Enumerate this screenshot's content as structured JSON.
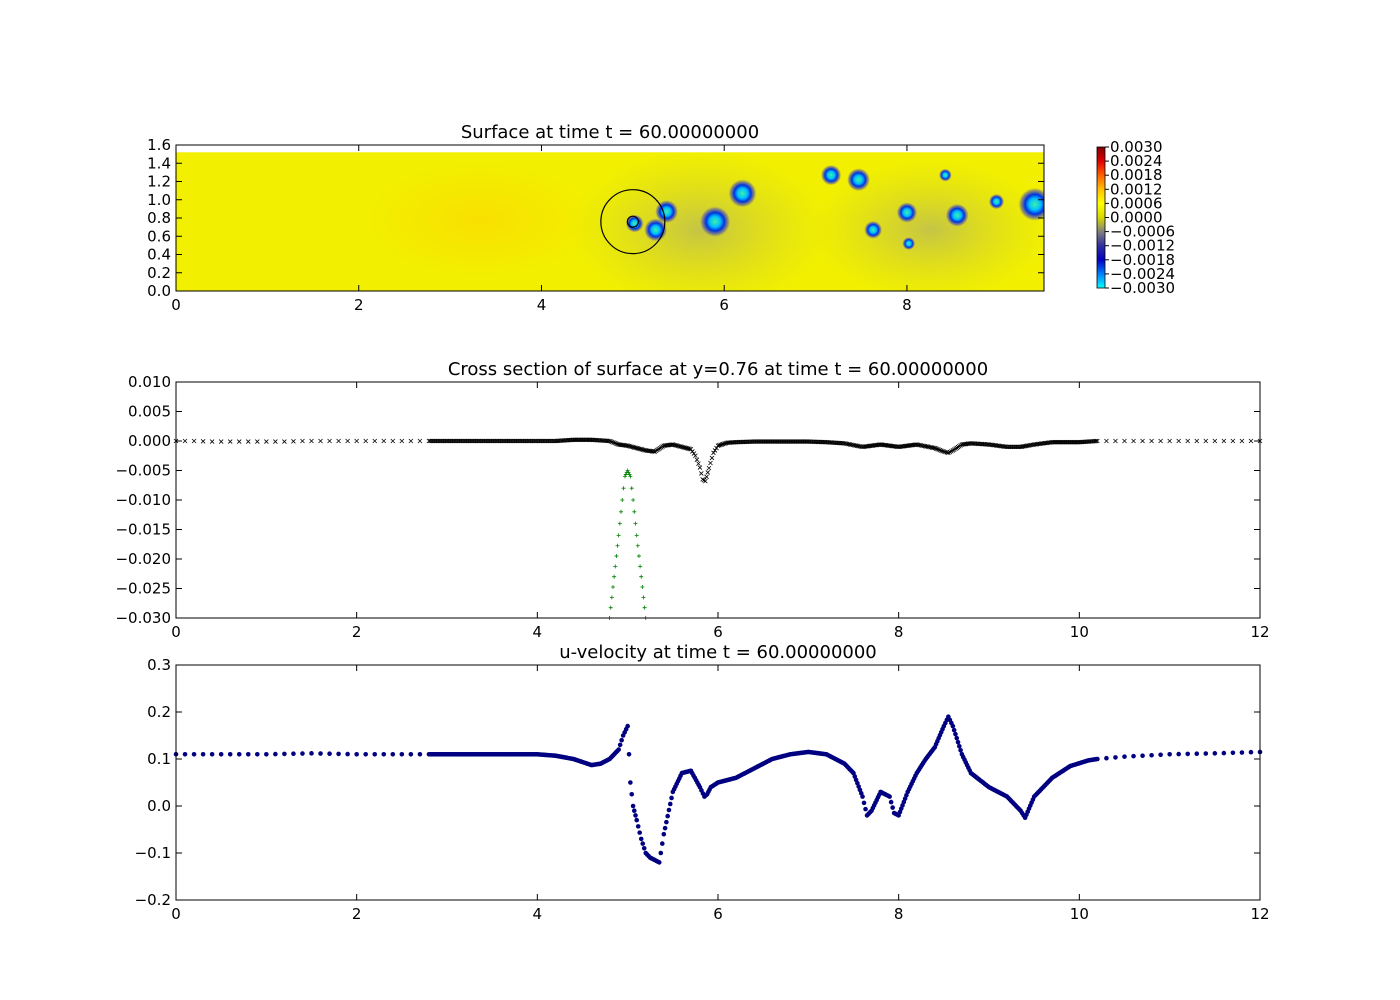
{
  "figure": {
    "background": "#ffffff"
  },
  "chart_data": [
    {
      "type": "heatmap",
      "title": "Surface at time t =    60.00000000",
      "xlim": [
        0,
        9.5
      ],
      "ylim": [
        0,
        1.6
      ],
      "x_ticks": [
        "0",
        "2",
        "4",
        "6",
        "8"
      ],
      "x_tick_values": [
        0,
        2,
        4,
        6,
        8
      ],
      "y_ticks": [
        "0.0",
        "0.2",
        "0.4",
        "0.6",
        "0.8",
        "1.0",
        "1.2",
        "1.4",
        "1.6"
      ],
      "y_tick_values": [
        0,
        0.2,
        0.4,
        0.6,
        0.8,
        1.0,
        1.2,
        1.4,
        1.6
      ],
      "field_extent_y": [
        0,
        1.52
      ],
      "background_color": "#f2f000",
      "colorbar": {
        "labels": [
          "0.0030",
          "0.0024",
          "0.0018",
          "0.0012",
          "0.0006",
          "0.0000",
          "−0.0006",
          "−0.0012",
          "−0.0018",
          "−0.0024",
          "−0.0030"
        ],
        "values": [
          0.003,
          0.0024,
          0.0018,
          0.0012,
          0.0006,
          0.0,
          -0.0006,
          -0.0012,
          -0.0018,
          -0.0024,
          -0.003
        ],
        "range": [
          -0.003,
          0.003
        ],
        "colors": [
          "#00ffff",
          "#0080ff",
          "#0000c0",
          "#3030a0",
          "#808080",
          "#c0c000",
          "#ffff00",
          "#ffc000",
          "#ff6000",
          "#e00000",
          "#800000"
        ]
      },
      "circle": {
        "center": [
          5.0,
          0.76
        ],
        "radius": 0.35,
        "inner_radius": 0.06
      },
      "depressions": [
        {
          "x": 5.02,
          "y": 0.74,
          "r": 0.07
        },
        {
          "x": 5.25,
          "y": 0.67,
          "r": 0.09
        },
        {
          "x": 5.37,
          "y": 0.87,
          "r": 0.09
        },
        {
          "x": 5.9,
          "y": 0.76,
          "r": 0.12
        },
        {
          "x": 6.2,
          "y": 1.07,
          "r": 0.11
        },
        {
          "x": 7.17,
          "y": 1.27,
          "r": 0.08
        },
        {
          "x": 7.47,
          "y": 1.22,
          "r": 0.09
        },
        {
          "x": 7.63,
          "y": 0.67,
          "r": 0.07
        },
        {
          "x": 8.0,
          "y": 0.86,
          "r": 0.08
        },
        {
          "x": 8.02,
          "y": 0.52,
          "r": 0.05
        },
        {
          "x": 8.42,
          "y": 1.27,
          "r": 0.05
        },
        {
          "x": 8.55,
          "y": 0.83,
          "r": 0.09
        },
        {
          "x": 8.98,
          "y": 0.98,
          "r": 0.06
        },
        {
          "x": 9.4,
          "y": 0.95,
          "r": 0.13
        }
      ]
    },
    {
      "type": "scatter",
      "title": "Cross section of surface at y=0.76 at time t =    60.00000000",
      "xlim": [
        0,
        12
      ],
      "ylim": [
        -0.03,
        0.01
      ],
      "x_ticks": [
        "0",
        "2",
        "4",
        "6",
        "8",
        "10",
        "12"
      ],
      "x_tick_values": [
        0,
        2,
        4,
        6,
        8,
        10,
        12
      ],
      "y_ticks": [
        "0.010",
        "0.005",
        "0.000",
        "−0.005",
        "−0.010",
        "−0.015",
        "−0.020",
        "−0.025",
        "−0.030"
      ],
      "y_tick_values": [
        0.01,
        0.005,
        0,
        -0.005,
        -0.01,
        -0.015,
        -0.02,
        -0.025,
        -0.03
      ],
      "series": [
        {
          "marker": "x",
          "color": "#000000",
          "x": [
            0,
            0.2,
            0.4,
            0.6,
            0.8,
            1.0,
            1.2,
            1.4,
            1.6,
            1.8,
            2.0,
            2.2,
            2.4,
            2.6,
            2.8,
            3.0,
            3.2,
            3.4,
            3.6,
            3.8,
            4.0,
            4.2,
            4.4,
            4.6,
            4.8,
            4.9,
            5.0,
            5.1,
            5.2,
            5.3,
            5.4,
            5.5,
            5.6,
            5.7,
            5.75,
            5.8,
            5.83,
            5.86,
            5.9,
            5.95,
            6.0,
            6.1,
            6.2,
            6.4,
            6.6,
            6.8,
            7.0,
            7.2,
            7.4,
            7.6,
            7.7,
            7.8,
            7.9,
            8.0,
            8.1,
            8.2,
            8.4,
            8.5,
            8.55,
            8.6,
            8.7,
            8.8,
            9.0,
            9.2,
            9.35,
            9.5,
            9.7,
            10.0,
            10.2,
            10.4,
            10.6,
            10.8,
            11.0,
            11.2,
            11.4,
            11.6,
            11.8,
            12.0
          ],
          "y": [
            0.0,
            0.0,
            -0.0001,
            -0.0001,
            -0.0001,
            -0.0001,
            -0.0001,
            0.0,
            0.0,
            0.0,
            0.0,
            0.0,
            0.0,
            0.0,
            0.0,
            0.0,
            0.0,
            0.0,
            0.0,
            0.0,
            0.0,
            0.0,
            0.0002,
            0.0002,
            0.0,
            -0.0006,
            -0.0008,
            -0.0012,
            -0.0016,
            -0.0018,
            -0.0008,
            -0.0006,
            -0.001,
            -0.0014,
            -0.0025,
            -0.0045,
            -0.0065,
            -0.0068,
            -0.0046,
            -0.002,
            -0.0008,
            -0.0003,
            -0.0002,
            -0.0001,
            -0.0001,
            -0.0001,
            -0.0001,
            -0.0002,
            -0.0004,
            -0.001,
            -0.0008,
            -0.0006,
            -0.0008,
            -0.001,
            -0.0008,
            -0.0006,
            -0.0012,
            -0.0018,
            -0.002,
            -0.0016,
            -0.0006,
            -0.0004,
            -0.0006,
            -0.001,
            -0.001,
            -0.0006,
            -0.0002,
            -0.0002,
            0.0,
            0.0,
            0.0,
            0.0,
            0.0,
            0.0,
            0.0,
            0.0,
            0.0,
            0.0
          ]
        },
        {
          "marker": "+",
          "color": "#008000",
          "x": [
            4.8,
            4.85,
            4.9,
            4.94,
            4.97,
            5.0,
            5.03,
            5.06,
            5.1,
            5.15,
            5.2
          ],
          "y": [
            -0.03,
            -0.023,
            -0.016,
            -0.01,
            -0.006,
            -0.005,
            -0.006,
            -0.01,
            -0.016,
            -0.023,
            -0.03
          ]
        }
      ]
    },
    {
      "type": "scatter",
      "title": "u-velocity at time t =    60.00000000",
      "xlim": [
        0,
        12
      ],
      "ylim": [
        -0.2,
        0.3
      ],
      "x_ticks": [
        "0",
        "2",
        "4",
        "6",
        "8",
        "10",
        "12"
      ],
      "x_tick_values": [
        0,
        2,
        4,
        6,
        8,
        10,
        12
      ],
      "y_ticks": [
        "0.3",
        "0.2",
        "0.1",
        "0.0",
        "−0.1",
        "−0.2"
      ],
      "y_tick_values": [
        0.3,
        0.2,
        0.1,
        0.0,
        -0.1,
        -0.2
      ],
      "series": [
        {
          "marker": "o",
          "color": "#000080",
          "x": [
            0,
            0.5,
            1.0,
            1.5,
            2.0,
            2.5,
            2.8,
            3.0,
            3.5,
            4.0,
            4.2,
            4.4,
            4.6,
            4.7,
            4.8,
            4.9,
            4.95,
            5.0,
            5.03,
            5.06,
            5.1,
            5.15,
            5.2,
            5.25,
            5.3,
            5.35,
            5.4,
            5.5,
            5.6,
            5.7,
            5.8,
            5.85,
            5.88,
            5.92,
            6.0,
            6.1,
            6.2,
            6.4,
            6.6,
            6.8,
            7.0,
            7.2,
            7.4,
            7.5,
            7.6,
            7.65,
            7.7,
            7.8,
            7.9,
            7.95,
            8.0,
            8.1,
            8.2,
            8.3,
            8.4,
            8.5,
            8.55,
            8.6,
            8.7,
            8.8,
            9.0,
            9.2,
            9.35,
            9.4,
            9.5,
            9.7,
            9.9,
            10.1,
            10.2,
            10.5,
            11.0,
            11.5,
            12.0
          ],
          "y": [
            0.11,
            0.11,
            0.11,
            0.112,
            0.11,
            0.11,
            0.11,
            0.11,
            0.11,
            0.11,
            0.107,
            0.1,
            0.087,
            0.09,
            0.1,
            0.12,
            0.15,
            0.17,
            0.05,
            0.0,
            -0.03,
            -0.07,
            -0.1,
            -0.11,
            -0.115,
            -0.12,
            -0.06,
            0.03,
            0.07,
            0.075,
            0.04,
            0.02,
            0.025,
            0.04,
            0.05,
            0.055,
            0.06,
            0.08,
            0.1,
            0.11,
            0.115,
            0.11,
            0.09,
            0.07,
            0.02,
            -0.02,
            -0.01,
            0.03,
            0.02,
            -0.015,
            -0.02,
            0.03,
            0.07,
            0.1,
            0.125,
            0.17,
            0.19,
            0.17,
            0.11,
            0.07,
            0.04,
            0.02,
            -0.01,
            -0.025,
            0.02,
            0.06,
            0.085,
            0.097,
            0.1,
            0.105,
            0.11,
            0.112,
            0.115
          ]
        }
      ]
    }
  ]
}
